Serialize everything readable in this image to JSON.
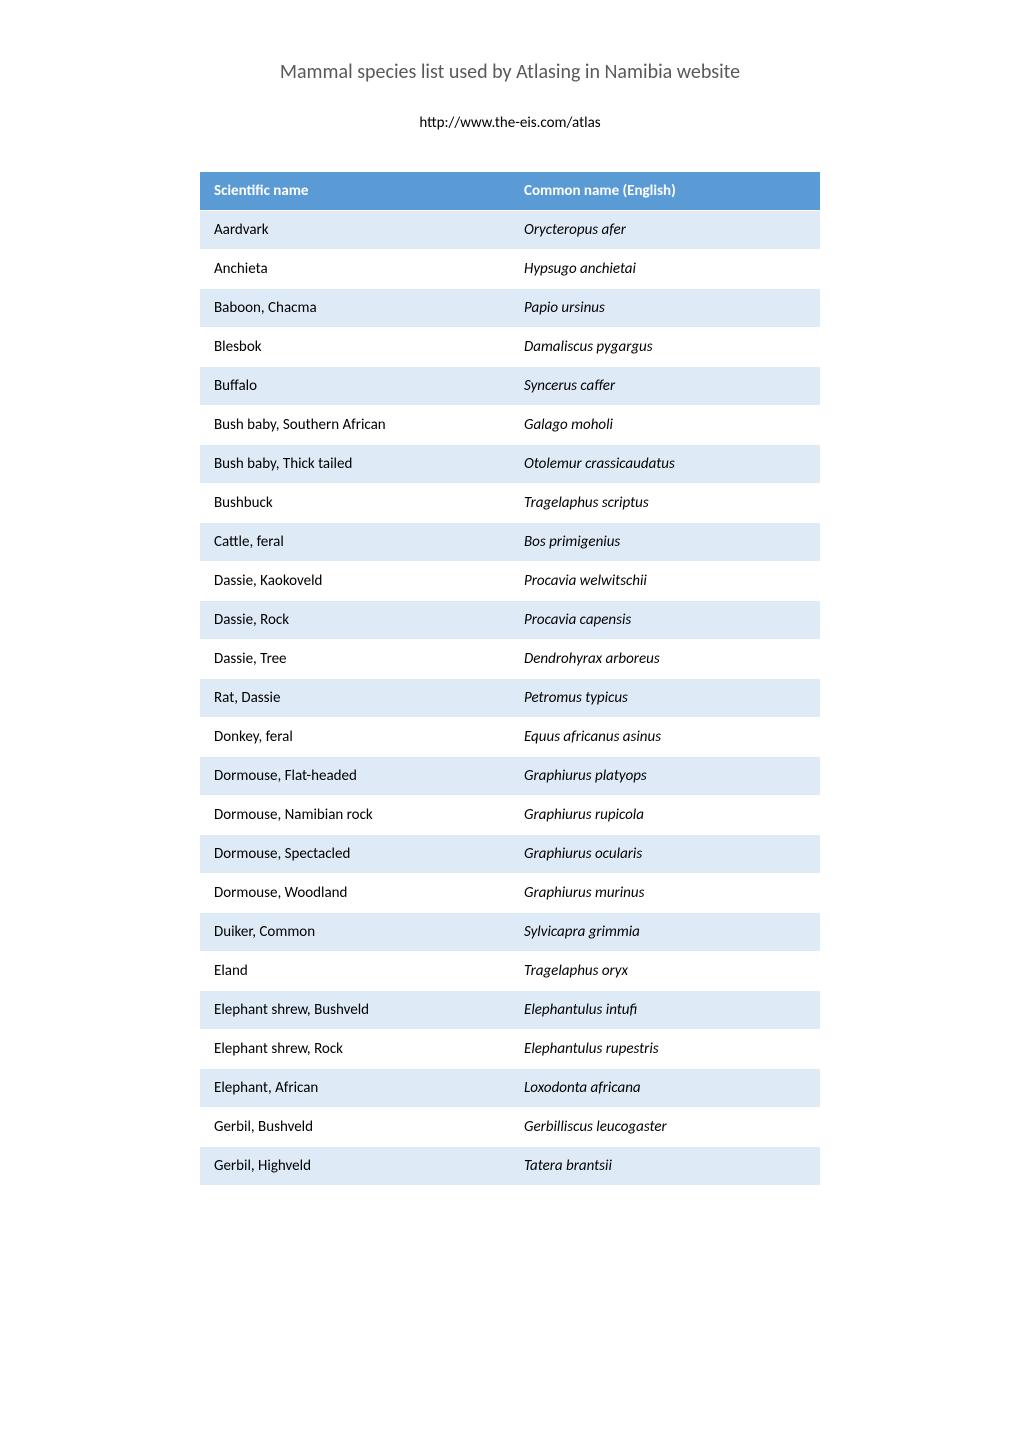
{
  "title": "Mammal species list used by Atlasing in Namibia website",
  "subtitle": "http://www.the-eis.com/atlas",
  "table": {
    "columns": [
      "Scientific name",
      "Common name (English)"
    ],
    "rows": [
      [
        "Aardvark",
        "Orycteropus afer"
      ],
      [
        "Anchieta",
        "Hypsugo anchietai"
      ],
      [
        "Baboon, Chacma",
        "Papio ursinus"
      ],
      [
        "Blesbok",
        "Damaliscus pygargus"
      ],
      [
        "Buffalo",
        "Syncerus caffer"
      ],
      [
        "Bush baby, Southern African",
        "Galago moholi"
      ],
      [
        "Bush baby, Thick tailed",
        "Otolemur crassicaudatus"
      ],
      [
        "Bushbuck",
        "Tragelaphus scriptus"
      ],
      [
        "Cattle, feral",
        "Bos primigenius"
      ],
      [
        "Dassie, Kaokoveld",
        "Procavia welwitschii"
      ],
      [
        "Dassie, Rock",
        "Procavia capensis"
      ],
      [
        "Dassie, Tree",
        "Dendrohyrax arboreus"
      ],
      [
        "Rat, Dassie",
        "Petromus typicus"
      ],
      [
        "Donkey, feral",
        "Equus africanus asinus"
      ],
      [
        "Dormouse, Flat-headed",
        "Graphiurus platyops"
      ],
      [
        "Dormouse, Namibian rock",
        "Graphiurus rupicola"
      ],
      [
        "Dormouse, Spectacled",
        "Graphiurus ocularis"
      ],
      [
        "Dormouse, Woodland",
        "Graphiurus murinus"
      ],
      [
        "Duiker, Common",
        "Sylvicapra grimmia"
      ],
      [
        "Eland",
        "Tragelaphus oryx"
      ],
      [
        "Elephant shrew, Bushveld",
        "Elephantulus intufi"
      ],
      [
        "Elephant shrew, Rock",
        "Elephantulus rupestris"
      ],
      [
        "Elephant, African",
        "Loxodonta africana"
      ],
      [
        "Gerbil, Bushveld",
        "Gerbilliscus leucogaster"
      ],
      [
        "Gerbil, Highveld",
        "Tatera brantsii"
      ]
    ],
    "header_bg": "#5b9bd5",
    "header_fg": "#ffffff",
    "row_even_bg": "#deeaf6",
    "row_odd_bg": "#ffffff",
    "cell_fontsize": 15
  }
}
